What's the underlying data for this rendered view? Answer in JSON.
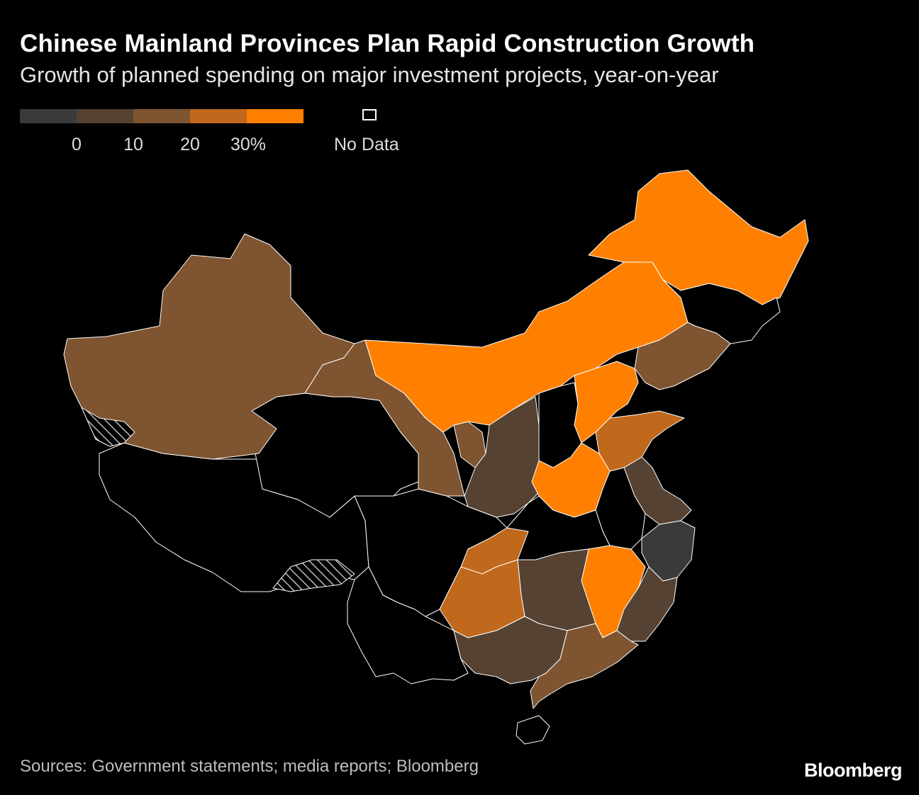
{
  "header": {
    "title": "Chinese Mainland Provinces Plan Rapid Construction Growth",
    "subtitle": "Growth of planned spending on major investment projects, year-on-year"
  },
  "legend": {
    "bins": [
      {
        "label": "< 0",
        "color": "#3a3a3a"
      },
      {
        "label": "0–10",
        "color": "#564232"
      },
      {
        "label": "10–20",
        "color": "#7f5430"
      },
      {
        "label": "20–30",
        "color": "#c0681c"
      },
      {
        "label": "≥ 30",
        "color": "#ff8000"
      }
    ],
    "ticks": [
      "0",
      "10",
      "20",
      "30%"
    ],
    "no_data_label": "No Data",
    "no_data_color": "#000000"
  },
  "colors": {
    "background": "#000000",
    "border": "#ffffff",
    "hatch": "#bbbbbb"
  },
  "map_regions": [
    {
      "id": "xinjiang",
      "bin": 2
    },
    {
      "id": "gansu",
      "bin": 2
    },
    {
      "id": "ningxia",
      "bin": 2
    },
    {
      "id": "inner-mongolia",
      "bin": 4
    },
    {
      "id": "heilongjiang",
      "bin": 4
    },
    {
      "id": "jilin",
      "bin": null
    },
    {
      "id": "liaoning",
      "bin": 2
    },
    {
      "id": "beijing",
      "bin": null
    },
    {
      "id": "tianjin",
      "bin": 1
    },
    {
      "id": "hebei",
      "bin": 4
    },
    {
      "id": "shanxi",
      "bin": null
    },
    {
      "id": "shaanxi",
      "bin": 1
    },
    {
      "id": "henan",
      "bin": 4
    },
    {
      "id": "shandong",
      "bin": 3
    },
    {
      "id": "jiangsu",
      "bin": 1
    },
    {
      "id": "shanghai",
      "bin": 1
    },
    {
      "id": "anhui",
      "bin": null
    },
    {
      "id": "zhejiang",
      "bin": 0
    },
    {
      "id": "hubei",
      "bin": null
    },
    {
      "id": "chongqing",
      "bin": 3
    },
    {
      "id": "guizhou",
      "bin": 3
    },
    {
      "id": "hunan",
      "bin": 1
    },
    {
      "id": "jiangxi",
      "bin": 4
    },
    {
      "id": "fujian",
      "bin": 1
    },
    {
      "id": "guangxi",
      "bin": 1
    },
    {
      "id": "guangdong",
      "bin": 2
    },
    {
      "id": "hainan",
      "bin": null
    },
    {
      "id": "tibet",
      "bin": null
    },
    {
      "id": "qinghai",
      "bin": null
    },
    {
      "id": "sichuan",
      "bin": null
    },
    {
      "id": "yunnan",
      "bin": null
    },
    {
      "id": "aksai-chin",
      "bin": "hatch"
    },
    {
      "id": "south-tibet",
      "bin": "hatch"
    }
  ],
  "footer": {
    "source": "Sources: Government statements; media reports; Bloomberg",
    "brand": "Bloomberg"
  }
}
